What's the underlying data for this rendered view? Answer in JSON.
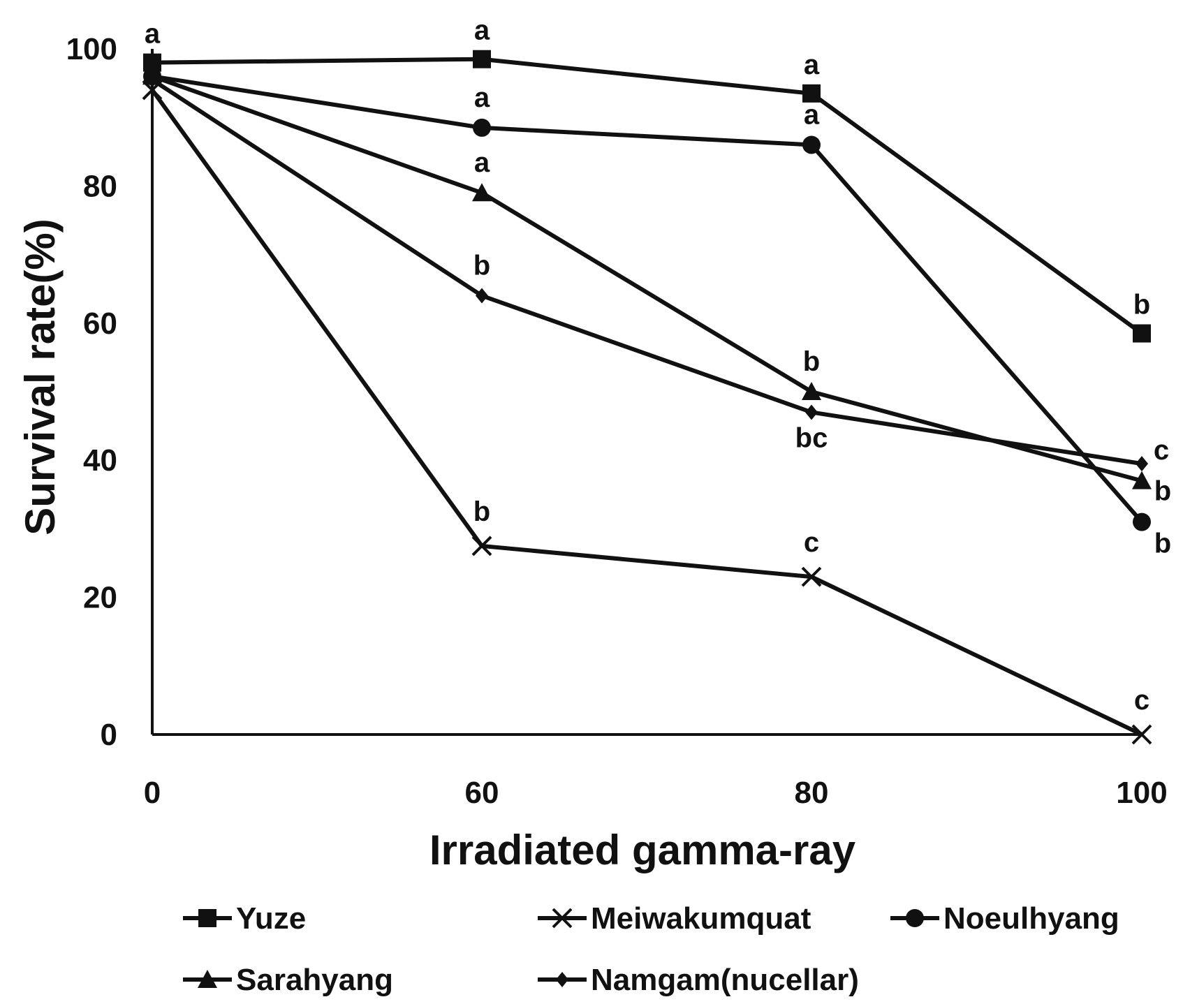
{
  "chart_data": {
    "type": "line",
    "xlabel": "Irradiated gamma-ray",
    "ylabel": "Survival rate(%)",
    "x": [
      0,
      60,
      80,
      100
    ],
    "x_ticks": [
      "0",
      "60",
      "80",
      "100"
    ],
    "y_ticks": [
      "0",
      "20",
      "40",
      "60",
      "80",
      "100"
    ],
    "ylim": [
      0,
      100
    ],
    "grid": false,
    "legend_position": "bottom",
    "series": [
      {
        "name": "Yuze",
        "marker": "square",
        "values": [
          98,
          98.5,
          93.5,
          58.5
        ],
        "labels": [
          "a",
          "a",
          "a",
          "b"
        ]
      },
      {
        "name": "Meiwakumquat",
        "marker": "x",
        "values": [
          94,
          27.5,
          23,
          0
        ],
        "labels": [
          "",
          "b",
          "c",
          "c"
        ]
      },
      {
        "name": "Noeulhyang",
        "marker": "circle",
        "values": [
          96,
          88.5,
          86,
          31
        ],
        "labels": [
          "",
          "a",
          "a",
          "b"
        ]
      },
      {
        "name": "Sarahyang",
        "marker": "triangle",
        "values": [
          96,
          79,
          50,
          37
        ],
        "labels": [
          "",
          "a",
          "b",
          "b"
        ]
      },
      {
        "name": "Namgam(nucellar)",
        "marker": "diamond",
        "values": [
          95.5,
          64,
          47,
          39.5
        ],
        "labels": [
          "",
          "b",
          "bc",
          "c"
        ]
      }
    ]
  }
}
